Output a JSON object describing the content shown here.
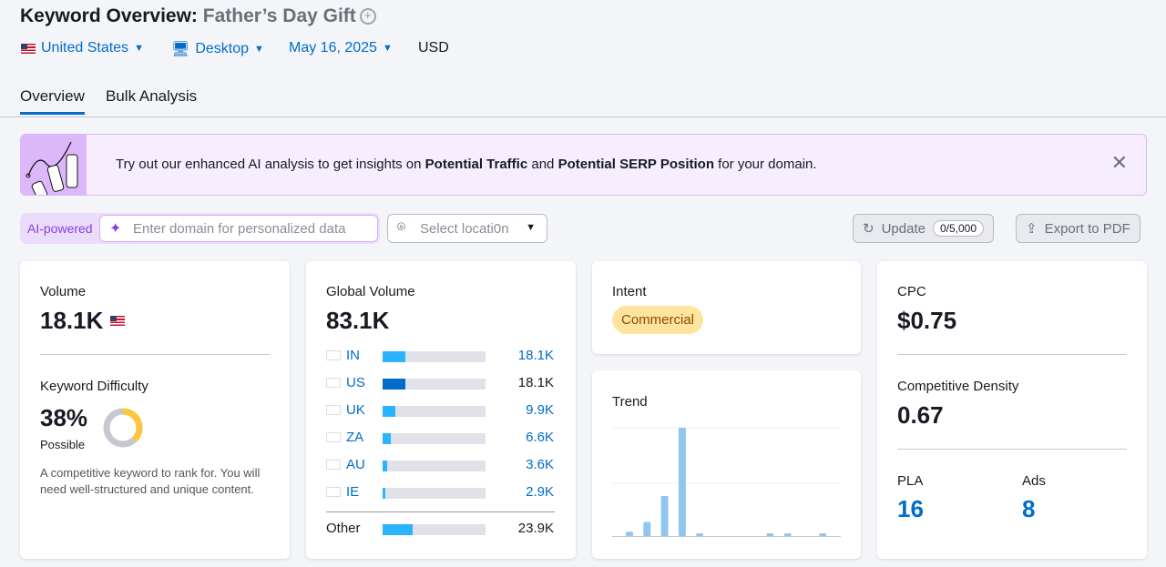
{
  "header": {
    "title": "Keyword Overview:",
    "keyword": "Father’s Day Gift",
    "country": "United States",
    "device": "Desktop",
    "date": "May 16, 2025",
    "currency": "USD"
  },
  "tabs": [
    {
      "label": "Overview",
      "active": true
    },
    {
      "label": "Bulk Analysis",
      "active": false
    }
  ],
  "banner": {
    "text_1": "Try out our enhanced AI analysis to get insights on ",
    "bold_1": "Potential Traffic",
    "text_2": " and ",
    "bold_2": "Potential SERP Position",
    "text_3": " for your domain."
  },
  "toolbar": {
    "ai_label": "AI-powered",
    "domain_placeholder": "Enter domain for personalized data",
    "location_placeholder": "Select locati0n",
    "update_label": "Update",
    "update_count": "0/5,000",
    "export_label": "Export to PDF"
  },
  "volume": {
    "label": "Volume",
    "value": "18.1K",
    "kd_label": "Keyword Difficulty",
    "kd_value": "38%",
    "kd_percent": 38,
    "kd_status": "Possible",
    "kd_desc": "A competitive keyword to rank for. You will need well-structured and unique content."
  },
  "global": {
    "label": "Global Volume",
    "value": "83.1K",
    "rows": [
      {
        "code": "IN",
        "value": "18.1K",
        "fill": 22,
        "link": true
      },
      {
        "code": "US",
        "value": "18.1K",
        "fill": 22,
        "link": false
      },
      {
        "code": "UK",
        "value": "9.9K",
        "fill": 12,
        "link": true
      },
      {
        "code": "ZA",
        "value": "6.6K",
        "fill": 8,
        "link": true
      },
      {
        "code": "AU",
        "value": "3.6K",
        "fill": 4,
        "link": true
      },
      {
        "code": "IE",
        "value": "2.9K",
        "fill": 3,
        "link": true
      }
    ],
    "other_label": "Other",
    "other_value": "23.9K",
    "other_fill": 29
  },
  "intent": {
    "label": "Intent",
    "badge": "Commercial"
  },
  "trend": {
    "label": "Trend",
    "values": [
      0.04,
      0.13,
      0.37,
      1,
      0.02,
      0,
      0,
      0,
      0.01,
      0.02,
      0,
      0.01
    ]
  },
  "cpc": {
    "label": "CPC",
    "value": "$0.75",
    "cd_label": "Competitive Density",
    "cd_value": "0.67",
    "pla_label": "PLA",
    "pla_value": "16",
    "ads_label": "Ads",
    "ads_value": "8"
  },
  "colors": {
    "accent": "#006dca",
    "bar": "#2bb3ff",
    "bar_dark": "#006dca",
    "trend": "#8fc6f0",
    "kd": "#ffc53d",
    "intent_bg": "#ffe49e"
  }
}
